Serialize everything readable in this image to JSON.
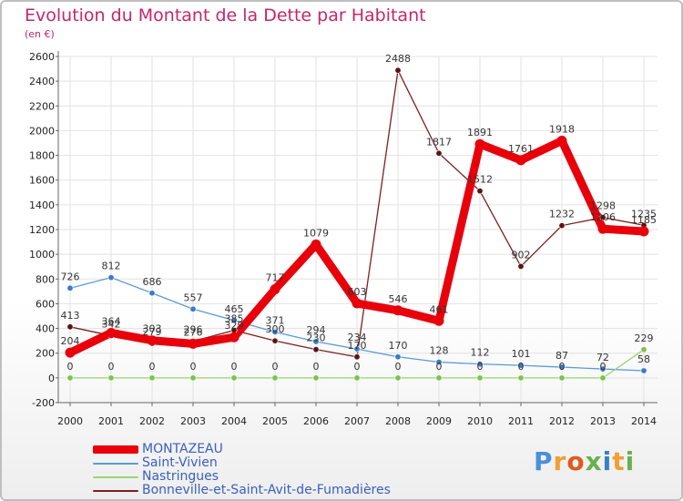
{
  "chart_data": {
    "type": "line",
    "title": "Evolution du Montant de la Dette par Habitant",
    "subtitle": "(en €)",
    "x": [
      "2000",
      "2001",
      "2002",
      "2003",
      "2004",
      "2005",
      "2006",
      "2007",
      "2008",
      "2009",
      "2010",
      "2011",
      "2012",
      "2013",
      "2014"
    ],
    "ylim": [
      -200,
      2600
    ],
    "yticks": [
      -200,
      0,
      200,
      400,
      600,
      800,
      1000,
      1200,
      1400,
      1600,
      1800,
      2000,
      2200,
      2400,
      2600
    ],
    "grid": true,
    "legend_position": "bottom-left",
    "series": [
      {
        "name": "MONTAZEAU",
        "color": "#e8000b",
        "width": 9,
        "marker_fill": "#e8000b",
        "values": [
          204,
          364,
          303,
          276,
          329,
          717,
          1079,
          603,
          546,
          461,
          1891,
          1761,
          1918,
          1206,
          1185
        ]
      },
      {
        "name": "Saint-Vivien",
        "color": "#5b9bd5",
        "width": 1.3,
        "marker_fill": "#3a7bc8",
        "values": [
          726,
          812,
          686,
          557,
          465,
          371,
          294,
          234,
          170,
          128,
          112,
          101,
          87,
          72,
          58
        ]
      },
      {
        "name": "Nastringues",
        "color": "#9ad56f",
        "width": 1.3,
        "marker_fill": "#7bc44a",
        "values": [
          0,
          0,
          0,
          0,
          0,
          0,
          0,
          0,
          0,
          0,
          0,
          0,
          0,
          0,
          229
        ]
      },
      {
        "name": "Bonneville-et-Saint-Avit-de-Fumadières",
        "color": "#7b2020",
        "width": 1.3,
        "marker_fill": "#5a1414",
        "values": [
          413,
          342,
          279,
          296,
          385,
          300,
          230,
          170,
          2488,
          1817,
          1512,
          902,
          1232,
          1298,
          1235
        ]
      }
    ]
  },
  "logo": [
    "P",
    "r",
    "o",
    "x",
    "i",
    "t",
    "i"
  ]
}
